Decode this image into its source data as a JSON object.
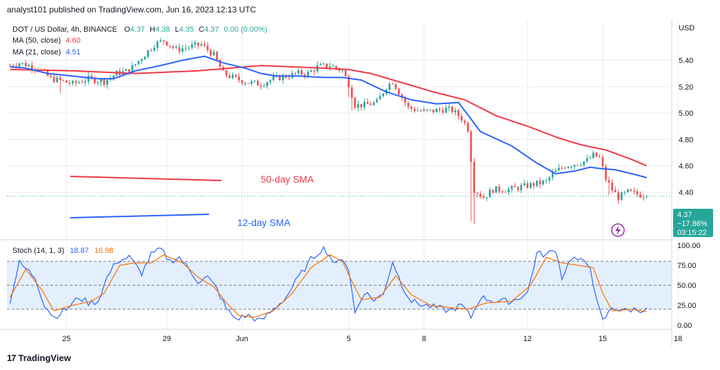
{
  "header": {
    "published": "analyst101 published on TradingView.com, Jun 16, 2023 12:13 UTC"
  },
  "legend": {
    "symbol": "DOT / US Dollar, 4h, BINANCE",
    "o_label": "O",
    "o": "4.37",
    "h_label": "H",
    "h": "4.38",
    "l_label": "L",
    "l": "4.35",
    "c_label": "C",
    "c": "4.37",
    "change": "0.00 (0.00%)",
    "ma50_label": "MA (50, close)",
    "ma50_value": "4.60",
    "ma21_label": "MA (21, close)",
    "ma21_value": "4.51"
  },
  "stoch_legend": {
    "label": "Stoch (14, 1, 3)",
    "k": "18.87",
    "d": "16.98"
  },
  "annotations": {
    "sma50": "50-day SMA",
    "sma12": "12-day SMA"
  },
  "price_badge": {
    "price": "4.37",
    "change": "−17.86%",
    "countdown": "03:15:22"
  },
  "footer": {
    "brand": "TradingView"
  },
  "colors": {
    "up": "#26a69a",
    "down": "#ef5350",
    "ma50": "#f23645",
    "ma21": "#2962ff",
    "stoch_k": "#2962ff",
    "stoch_d": "#ff6d00",
    "badge": "#26a69a",
    "band": "#e3effd"
  },
  "chart_data": {
    "type": "candlestick",
    "price_axis": {
      "currency": "USD",
      "range": [
        4.05,
        5.7
      ],
      "ticks": [
        "5.40",
        "5.20",
        "5.00",
        "4.80",
        "4.60",
        "4.40"
      ]
    },
    "time_axis": {
      "index_range": [
        -1,
        211
      ],
      "ticks": [
        {
          "label": "25",
          "index": 18
        },
        {
          "label": "29",
          "index": 50
        },
        {
          "label": "Jun",
          "index": 74
        },
        {
          "label": "5",
          "index": 108
        },
        {
          "label": "8",
          "index": 132
        },
        {
          "label": "12",
          "index": 165
        },
        {
          "label": "15",
          "index": 189
        },
        {
          "label": "18",
          "index": 213
        }
      ]
    },
    "waypoints": [
      [
        0,
        5.36
      ],
      [
        3,
        5.38
      ],
      [
        9,
        5.34
      ],
      [
        13,
        5.26
      ],
      [
        17,
        5.24
      ],
      [
        20,
        5.22
      ],
      [
        25,
        5.26
      ],
      [
        30,
        5.24
      ],
      [
        34,
        5.3
      ],
      [
        38,
        5.32
      ],
      [
        42,
        5.42
      ],
      [
        46,
        5.52
      ],
      [
        49,
        5.55
      ],
      [
        53,
        5.48
      ],
      [
        57,
        5.5
      ],
      [
        61,
        5.52
      ],
      [
        65,
        5.44
      ],
      [
        68,
        5.3
      ],
      [
        72,
        5.26
      ],
      [
        76,
        5.23
      ],
      [
        80,
        5.22
      ],
      [
        84,
        5.26
      ],
      [
        88,
        5.28
      ],
      [
        92,
        5.3
      ],
      [
        95,
        5.3
      ],
      [
        98,
        5.35
      ],
      [
        102,
        5.36
      ],
      [
        106,
        5.32
      ],
      [
        108,
        5.22
      ],
      [
        110,
        5.06
      ],
      [
        113,
        5.06
      ],
      [
        117,
        5.08
      ],
      [
        120,
        5.2
      ],
      [
        122,
        5.24
      ],
      [
        124,
        5.16
      ],
      [
        127,
        5.04
      ],
      [
        130,
        5.02
      ],
      [
        133,
        5.01
      ],
      [
        136,
        5.02
      ],
      [
        139,
        5.03
      ],
      [
        141,
        5.02
      ],
      [
        144,
        4.96
      ],
      [
        146,
        4.88
      ],
      [
        148,
        4.42
      ],
      [
        151,
        4.36
      ],
      [
        154,
        4.42
      ],
      [
        159,
        4.42
      ],
      [
        163,
        4.44
      ],
      [
        167,
        4.46
      ],
      [
        171,
        4.48
      ],
      [
        173,
        4.54
      ],
      [
        177,
        4.6
      ],
      [
        181,
        4.62
      ],
      [
        184,
        4.64
      ],
      [
        186,
        4.68
      ],
      [
        188,
        4.66
      ],
      [
        190,
        4.5
      ],
      [
        192,
        4.42
      ],
      [
        194,
        4.36
      ],
      [
        197,
        4.4
      ],
      [
        201,
        4.38
      ],
      [
        203,
        4.37
      ]
    ],
    "last_index": 203,
    "ma50": [
      [
        0,
        5.33
      ],
      [
        20,
        5.32
      ],
      [
        40,
        5.3
      ],
      [
        60,
        5.32
      ],
      [
        80,
        5.36
      ],
      [
        100,
        5.34
      ],
      [
        108,
        5.33
      ],
      [
        115,
        5.3
      ],
      [
        125,
        5.23
      ],
      [
        135,
        5.16
      ],
      [
        145,
        5.1
      ],
      [
        155,
        4.98
      ],
      [
        165,
        4.9
      ],
      [
        175,
        4.81
      ],
      [
        182,
        4.76
      ],
      [
        190,
        4.72
      ],
      [
        198,
        4.65
      ],
      [
        203,
        4.6
      ]
    ],
    "ma21": [
      [
        0,
        5.35
      ],
      [
        5,
        5.34
      ],
      [
        12,
        5.3
      ],
      [
        20,
        5.28
      ],
      [
        28,
        5.26
      ],
      [
        33,
        5.26
      ],
      [
        40,
        5.32
      ],
      [
        48,
        5.36
      ],
      [
        55,
        5.4
      ],
      [
        62,
        5.43
      ],
      [
        68,
        5.38
      ],
      [
        75,
        5.34
      ],
      [
        80,
        5.3
      ],
      [
        85,
        5.28
      ],
      [
        92,
        5.28
      ],
      [
        100,
        5.27
      ],
      [
        106,
        5.27
      ],
      [
        112,
        5.25
      ],
      [
        120,
        5.16
      ],
      [
        128,
        5.1
      ],
      [
        136,
        5.07
      ],
      [
        143,
        5.08
      ],
      [
        150,
        4.86
      ],
      [
        160,
        4.75
      ],
      [
        168,
        4.62
      ],
      [
        174,
        4.54
      ],
      [
        180,
        4.56
      ],
      [
        185,
        4.59
      ],
      [
        188,
        4.58
      ],
      [
        193,
        4.57
      ],
      [
        200,
        4.53
      ],
      [
        203,
        4.51
      ]
    ],
    "stoch": {
      "range": [
        0,
        100
      ],
      "ticks": [
        100,
        75,
        50,
        25,
        0
      ],
      "band": [
        20,
        80
      ],
      "k_waypoints": [
        [
          0,
          30
        ],
        [
          3,
          78
        ],
        [
          8,
          60
        ],
        [
          11,
          25
        ],
        [
          14,
          10
        ],
        [
          18,
          20
        ],
        [
          22,
          35
        ],
        [
          25,
          28
        ],
        [
          28,
          30
        ],
        [
          31,
          60
        ],
        [
          34,
          80
        ],
        [
          38,
          85
        ],
        [
          42,
          65
        ],
        [
          45,
          88
        ],
        [
          48,
          95
        ],
        [
          51,
          80
        ],
        [
          54,
          85
        ],
        [
          57,
          70
        ],
        [
          60,
          55
        ],
        [
          63,
          60
        ],
        [
          66,
          45
        ],
        [
          69,
          20
        ],
        [
          72,
          8
        ],
        [
          76,
          12
        ],
        [
          80,
          5
        ],
        [
          84,
          20
        ],
        [
          88,
          35
        ],
        [
          92,
          60
        ],
        [
          96,
          82
        ],
        [
          100,
          98
        ],
        [
          104,
          75
        ],
        [
          106,
          85
        ],
        [
          108,
          70
        ],
        [
          110,
          15
        ],
        [
          113,
          42
        ],
        [
          116,
          32
        ],
        [
          119,
          38
        ],
        [
          122,
          80
        ],
        [
          125,
          50
        ],
        [
          128,
          30
        ],
        [
          132,
          25
        ],
        [
          136,
          22
        ],
        [
          140,
          18
        ],
        [
          144,
          25
        ],
        [
          147,
          10
        ],
        [
          150,
          35
        ],
        [
          155,
          30
        ],
        [
          160,
          30
        ],
        [
          165,
          40
        ],
        [
          168,
          90
        ],
        [
          171,
          88
        ],
        [
          174,
          95
        ],
        [
          176,
          60
        ],
        [
          179,
          85
        ],
        [
          182,
          80
        ],
        [
          185,
          75
        ],
        [
          187,
          30
        ],
        [
          189,
          5
        ],
        [
          192,
          22
        ],
        [
          196,
          18
        ],
        [
          199,
          20
        ],
        [
          203,
          18.87
        ]
      ],
      "d_waypoints": [
        [
          0,
          35
        ],
        [
          5,
          70
        ],
        [
          10,
          45
        ],
        [
          14,
          18
        ],
        [
          20,
          25
        ],
        [
          26,
          30
        ],
        [
          30,
          40
        ],
        [
          35,
          75
        ],
        [
          40,
          78
        ],
        [
          45,
          78
        ],
        [
          49,
          88
        ],
        [
          55,
          78
        ],
        [
          60,
          60
        ],
        [
          65,
          48
        ],
        [
          69,
          28
        ],
        [
          73,
          12
        ],
        [
          78,
          10
        ],
        [
          84,
          18
        ],
        [
          90,
          40
        ],
        [
          96,
          72
        ],
        [
          102,
          88
        ],
        [
          106,
          80
        ],
        [
          109,
          55
        ],
        [
          112,
          32
        ],
        [
          118,
          35
        ],
        [
          123,
          62
        ],
        [
          128,
          38
        ],
        [
          134,
          25
        ],
        [
          140,
          22
        ],
        [
          146,
          20
        ],
        [
          152,
          28
        ],
        [
          160,
          30
        ],
        [
          166,
          50
        ],
        [
          171,
          85
        ],
        [
          176,
          78
        ],
        [
          181,
          75
        ],
        [
          186,
          72
        ],
        [
          189,
          40
        ],
        [
          192,
          18
        ],
        [
          198,
          20
        ],
        [
          203,
          16.98
        ]
      ]
    }
  }
}
